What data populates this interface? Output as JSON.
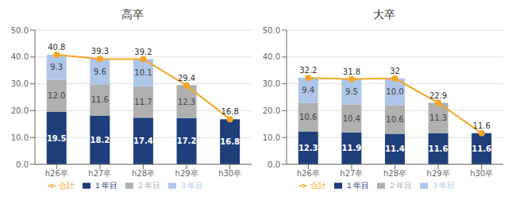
{
  "chart_data": [
    {
      "type": "bar",
      "title": "高卒",
      "categories": [
        "h26卒",
        "h27卒",
        "h28卒",
        "h29卒",
        "h30卒"
      ],
      "stacked": true,
      "grid": true,
      "legend": "bottom",
      "data_labels": true,
      "ylim": [
        0,
        50
      ],
      "yticks": [
        {
          "value": 0,
          "label": "0.0"
        },
        {
          "value": 10,
          "label": "10.0"
        },
        {
          "value": 20,
          "label": "20.0"
        },
        {
          "value": 30,
          "label": "30.0"
        },
        {
          "value": 40,
          "label": "40.0"
        },
        {
          "value": 50,
          "label": "50.0"
        }
      ],
      "series": [
        {
          "name": "１年目",
          "type": "bar",
          "color": "#1f3f7a",
          "values": [
            19.5,
            18.2,
            17.4,
            17.2,
            16.8
          ]
        },
        {
          "name": "２年目",
          "type": "bar",
          "color": "#b0b0b0",
          "values": [
            12.0,
            11.6,
            11.7,
            12.3,
            0.0
          ],
          "value_labels": [
            "12.0",
            "11.6",
            "11.7",
            "12.3",
            null
          ]
        },
        {
          "name": "３年目",
          "type": "bar",
          "color": "#aec6e8",
          "values": [
            9.3,
            9.6,
            10.1,
            0.0,
            0.0
          ],
          "value_labels": [
            "9.3",
            "9.6",
            "10.1",
            null,
            null
          ]
        },
        {
          "name": "合計",
          "type": "line",
          "marker": "o",
          "color": "#f5a623",
          "values": [
            40.8,
            39.3,
            39.2,
            29.4,
            16.8
          ]
        }
      ]
    },
    {
      "type": "bar",
      "title": "大卒",
      "categories": [
        "h26卒",
        "h27卒",
        "h28卒",
        "h29卒",
        "h30卒"
      ],
      "stacked": true,
      "grid": true,
      "legend": "bottom",
      "data_labels": true,
      "ylim": [
        0,
        50
      ],
      "yticks": [
        {
          "value": 0,
          "label": "0.0"
        },
        {
          "value": 10,
          "label": "10.0"
        },
        {
          "value": 20,
          "label": "20.0"
        },
        {
          "value": 30,
          "label": "30.0"
        },
        {
          "value": 40,
          "label": "40.0"
        },
        {
          "value": 50,
          "label": "50.0"
        }
      ],
      "series": [
        {
          "name": "１年目",
          "type": "bar",
          "color": "#1f3f7a",
          "values": [
            12.3,
            11.9,
            11.4,
            11.6,
            11.6
          ]
        },
        {
          "name": "２年目",
          "type": "bar",
          "color": "#b0b0b0",
          "values": [
            10.6,
            10.4,
            10.6,
            11.3,
            0.0
          ],
          "value_labels": [
            "10.6",
            "10.4",
            "10.6",
            "11.3",
            null
          ]
        },
        {
          "name": "３年目",
          "type": "bar",
          "color": "#aec6e8",
          "values": [
            9.4,
            9.5,
            10.0,
            0.0,
            0.0
          ],
          "value_labels": [
            "9.4",
            "9.5",
            "10.0",
            null,
            null
          ]
        },
        {
          "name": "合計",
          "type": "line",
          "marker": "o",
          "color": "#f5a623",
          "values": [
            32.2,
            31.8,
            32.0,
            22.9,
            11.6
          ]
        }
      ]
    }
  ]
}
